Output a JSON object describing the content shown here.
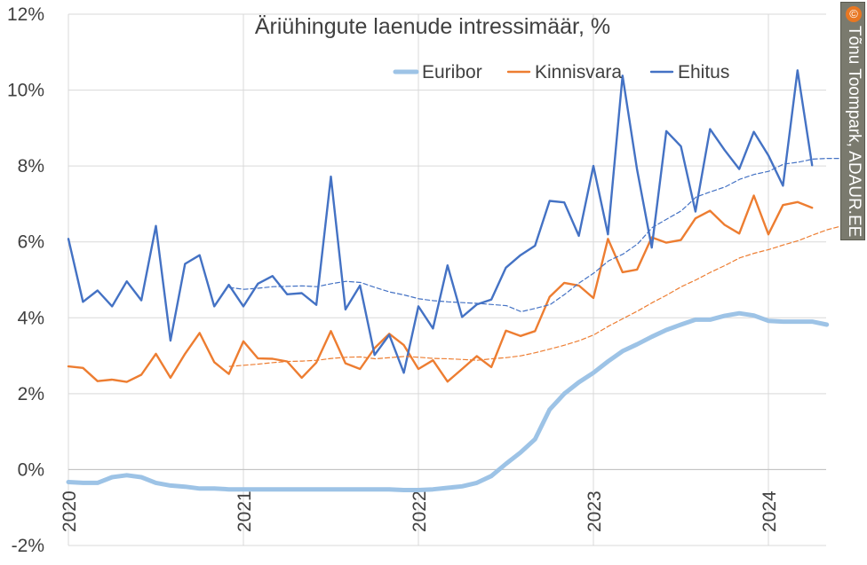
{
  "chart_data": {
    "type": "line",
    "title": "Äriühingute laenude intressimäär, %",
    "ylim": [
      -2,
      12
    ],
    "yticks": [
      -2,
      0,
      2,
      4,
      6,
      8,
      10,
      12
    ],
    "ytick_labels": [
      "-2%",
      "0%",
      "2%",
      "4%",
      "6%",
      "8%",
      "10%",
      "12%"
    ],
    "xlim": [
      2020.0,
      2024.33
    ],
    "xticks": [
      2020,
      2021,
      2022,
      2023,
      2024
    ],
    "xtick_labels": [
      "2020",
      "2021",
      "2022",
      "2023",
      "2024"
    ],
    "legend_position": "top-right",
    "grid": {
      "horizontal": true,
      "vertical": true
    },
    "series": [
      {
        "name": "Euribor",
        "color": "#9dc3e6",
        "style": "thick",
        "x_start": 2020.0,
        "values": [
          -0.33,
          -0.35,
          -0.35,
          -0.2,
          -0.15,
          -0.2,
          -0.35,
          -0.42,
          -0.45,
          -0.5,
          -0.5,
          -0.52,
          -0.52,
          -0.52,
          -0.52,
          -0.52,
          -0.52,
          -0.52,
          -0.52,
          -0.52,
          -0.52,
          -0.52,
          -0.52,
          -0.54,
          -0.54,
          -0.52,
          -0.48,
          -0.44,
          -0.35,
          -0.17,
          0.15,
          0.45,
          0.8,
          1.58,
          2.0,
          2.3,
          2.55,
          2.85,
          3.12,
          3.3,
          3.5,
          3.68,
          3.82,
          3.95,
          3.95,
          4.05,
          4.12,
          4.06,
          3.92,
          3.9,
          3.9,
          3.9,
          3.82
        ]
      },
      {
        "name": "Kinnisvara",
        "color": "#ed7d31",
        "style": "solid",
        "x_start": 2020.0,
        "values": [
          2.72,
          2.68,
          2.33,
          2.37,
          2.31,
          2.5,
          3.05,
          2.42,
          3.05,
          3.6,
          2.83,
          2.52,
          3.38,
          2.93,
          2.92,
          2.85,
          2.42,
          2.82,
          3.65,
          2.8,
          2.65,
          3.2,
          3.58,
          3.28,
          2.65,
          2.88,
          2.32,
          2.65,
          2.99,
          2.7,
          3.66,
          3.52,
          3.65,
          4.55,
          4.92,
          4.85,
          4.52,
          6.08,
          5.2,
          5.27,
          6.12,
          5.98,
          6.05,
          6.62,
          6.82,
          6.45,
          6.22,
          7.22,
          6.2,
          6.97,
          7.05,
          6.9
        ]
      },
      {
        "name": "Ehitus",
        "color": "#4472c4",
        "style": "solid",
        "x_start": 2020.0,
        "values": [
          6.08,
          4.42,
          4.72,
          4.3,
          4.96,
          4.46,
          6.42,
          3.4,
          5.42,
          5.65,
          4.3,
          4.87,
          4.3,
          4.9,
          5.1,
          4.62,
          4.65,
          4.34,
          7.72,
          4.22,
          4.85,
          3.02,
          3.55,
          2.55,
          4.3,
          3.72,
          5.38,
          4.02,
          4.35,
          4.48,
          5.32,
          5.65,
          5.9,
          7.08,
          7.04,
          6.16,
          8.0,
          6.2,
          10.38,
          7.9,
          5.85,
          8.92,
          8.52,
          6.8,
          8.97,
          8.42,
          7.92,
          8.9,
          8.28,
          7.48,
          10.52,
          8.02
        ]
      },
      {
        "name": "",
        "color": "#ed7d31",
        "style": "dashed",
        "x_start": 2020.92,
        "values": [
          2.72,
          2.75,
          2.78,
          2.82,
          2.85,
          2.86,
          2.88,
          2.93,
          2.96,
          2.97,
          2.92,
          2.95,
          2.98,
          2.96,
          2.93,
          2.92,
          2.9,
          2.88,
          2.92,
          2.95,
          3.0,
          3.08,
          3.18,
          3.28,
          3.4,
          3.55,
          3.78,
          3.98,
          4.18,
          4.4,
          4.6,
          4.82,
          5.0,
          5.2,
          5.38,
          5.58,
          5.7,
          5.8,
          5.92,
          6.03,
          6.18,
          6.32,
          6.42,
          6.52
        ]
      },
      {
        "name": "",
        "color": "#4472c4",
        "style": "dashed",
        "x_start": 2020.92,
        "values": [
          4.8,
          4.75,
          4.78,
          4.82,
          4.83,
          4.84,
          4.82,
          4.9,
          4.96,
          4.93,
          4.8,
          4.68,
          4.6,
          4.5,
          4.45,
          4.42,
          4.4,
          4.38,
          4.35,
          4.32,
          4.16,
          4.25,
          4.35,
          4.62,
          4.92,
          5.18,
          5.5,
          5.68,
          5.95,
          6.38,
          6.6,
          6.82,
          7.18,
          7.32,
          7.45,
          7.65,
          7.78,
          7.86,
          8.05,
          8.1,
          8.18,
          8.2,
          8.2
        ]
      }
    ]
  },
  "credit": {
    "symbol": "©",
    "text": "Tõnu Toompark, ADAUR.EE",
    "color": "#7a7a6e",
    "icon_color": "#e87722"
  }
}
